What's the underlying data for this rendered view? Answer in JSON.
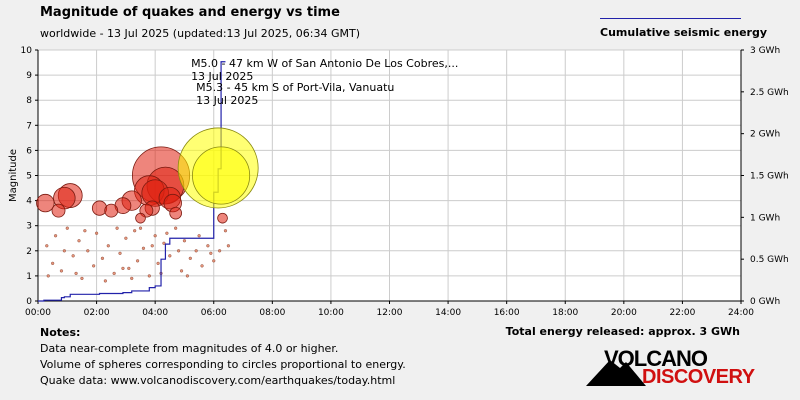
{
  "header": {
    "title": "Magnitude of quakes and energy vs time",
    "subtitle": "worldwide - 13 Jul 2025 (updated:13 Jul 2025, 06:34 GMT)",
    "legend_label": "Cumulative seismic energy"
  },
  "notes": {
    "heading": "Notes:",
    "line1": "Data near-complete from magnitudes of 4.0 or higher.",
    "line2": "Volume of spheres corresponding to circles proportional to energy.",
    "line3": "Quake data: www.volcanodiscovery.com/earthquakes/today.html"
  },
  "total_energy": "Total energy released: approx. 3 GWh",
  "logo": {
    "line1": "VOLCANO",
    "line2": "DISCOVERY"
  },
  "colors": {
    "energy_line": "#2222aa",
    "quake_red": "#e02010",
    "quake_yellow": "#ffff00",
    "grid": "#cccccc"
  },
  "chart_data": {
    "type": "scatter",
    "ylabel": "Magnitude",
    "ylim": [
      0,
      10
    ],
    "y_ticks": [
      "0",
      "1",
      "2",
      "3",
      "4",
      "5",
      "6",
      "7",
      "8",
      "9",
      "10"
    ],
    "x_ticks": [
      "00:00",
      "02:00",
      "04:00",
      "06:00",
      "08:00",
      "10:00",
      "12:00",
      "14:00",
      "16:00",
      "18:00",
      "20:00",
      "22:00",
      "24:00"
    ],
    "xlim_hours": [
      0,
      24
    ],
    "y2_label": "Cumulative seismic energy",
    "y2lim_gwh": [
      0,
      3
    ],
    "y2_ticks": [
      "0 GWh",
      "0.5 GWh",
      "1 GWh",
      "1.5 GWh",
      "2 GWh",
      "2.5 GWh",
      "3 GWh"
    ],
    "grid": true,
    "annotations": [
      {
        "text": "M5.0 - 47 km W of San Antonio De Los Cobres,...",
        "date": "13 Jul 2025",
        "time_h": 6.25,
        "mag": 5.0
      },
      {
        "text": "M5.3 - 45 km S of Port-Vila, Vanuatu",
        "date": "13 Jul 2025",
        "time_h": 6.15,
        "mag": 5.3
      }
    ],
    "quakes_large": [
      {
        "t": 0.25,
        "m": 3.9
      },
      {
        "t": 0.7,
        "m": 3.6
      },
      {
        "t": 0.9,
        "m": 4.1
      },
      {
        "t": 1.1,
        "m": 4.2
      },
      {
        "t": 2.1,
        "m": 3.7
      },
      {
        "t": 2.5,
        "m": 3.6
      },
      {
        "t": 2.9,
        "m": 3.8
      },
      {
        "t": 3.2,
        "m": 4.0
      },
      {
        "t": 3.5,
        "m": 3.3
      },
      {
        "t": 3.7,
        "m": 3.6
      },
      {
        "t": 3.8,
        "m": 4.4
      },
      {
        "t": 3.9,
        "m": 3.7
      },
      {
        "t": 4.0,
        "m": 4.3
      },
      {
        "t": 4.2,
        "m": 5.0
      },
      {
        "t": 4.35,
        "m": 4.6
      },
      {
        "t": 4.5,
        "m": 4.1
      },
      {
        "t": 4.6,
        "m": 3.9
      },
      {
        "t": 4.7,
        "m": 3.5
      },
      {
        "t": 6.3,
        "m": 3.3
      }
    ],
    "quakes_highlight": [
      {
        "t": 6.15,
        "m": 5.3,
        "label": "M5.3"
      },
      {
        "t": 6.25,
        "m": 5.0,
        "label": "M5.0"
      }
    ],
    "quakes_small": [
      {
        "t": 0.3,
        "m": 2.2
      },
      {
        "t": 0.5,
        "m": 1.5
      },
      {
        "t": 0.6,
        "m": 2.6
      },
      {
        "t": 0.8,
        "m": 1.2
      },
      {
        "t": 1.0,
        "m": 2.9
      },
      {
        "t": 1.2,
        "m": 1.8
      },
      {
        "t": 1.4,
        "m": 2.4
      },
      {
        "t": 1.5,
        "m": 0.9
      },
      {
        "t": 1.7,
        "m": 2.0
      },
      {
        "t": 1.9,
        "m": 1.4
      },
      {
        "t": 2.0,
        "m": 2.7
      },
      {
        "t": 2.2,
        "m": 1.7
      },
      {
        "t": 2.4,
        "m": 2.2
      },
      {
        "t": 2.6,
        "m": 1.1
      },
      {
        "t": 2.7,
        "m": 2.9
      },
      {
        "t": 2.8,
        "m": 1.9
      },
      {
        "t": 3.0,
        "m": 2.5
      },
      {
        "t": 3.1,
        "m": 1.3
      },
      {
        "t": 3.3,
        "m": 2.8
      },
      {
        "t": 3.4,
        "m": 1.6
      },
      {
        "t": 3.6,
        "m": 2.1
      },
      {
        "t": 3.8,
        "m": 1.0
      },
      {
        "t": 4.0,
        "m": 2.6
      },
      {
        "t": 4.1,
        "m": 1.5
      },
      {
        "t": 4.3,
        "m": 2.3
      },
      {
        "t": 4.5,
        "m": 1.8
      },
      {
        "t": 4.7,
        "m": 2.9
      },
      {
        "t": 4.9,
        "m": 1.2
      },
      {
        "t": 5.0,
        "m": 2.4
      },
      {
        "t": 5.2,
        "m": 1.7
      },
      {
        "t": 5.4,
        "m": 2.0
      },
      {
        "t": 5.6,
        "m": 1.4
      },
      {
        "t": 5.8,
        "m": 2.2
      },
      {
        "t": 6.0,
        "m": 1.6
      },
      {
        "t": 6.4,
        "m": 2.8
      },
      {
        "t": 6.5,
        "m": 2.2
      },
      {
        "t": 0.35,
        "m": 1.0
      },
      {
        "t": 0.9,
        "m": 2.0
      },
      {
        "t": 1.3,
        "m": 1.1
      },
      {
        "t": 1.6,
        "m": 2.8
      },
      {
        "t": 2.3,
        "m": 0.8
      },
      {
        "t": 2.9,
        "m": 1.3
      },
      {
        "t": 3.2,
        "m": 0.9
      },
      {
        "t": 3.5,
        "m": 2.9
      },
      {
        "t": 3.9,
        "m": 2.2
      },
      {
        "t": 4.2,
        "m": 1.1
      },
      {
        "t": 4.4,
        "m": 2.7
      },
      {
        "t": 4.8,
        "m": 2.0
      },
      {
        "t": 5.1,
        "m": 1.0
      },
      {
        "t": 5.5,
        "m": 2.6
      },
      {
        "t": 5.9,
        "m": 1.9
      },
      {
        "t": 6.2,
        "m": 2.0
      }
    ],
    "energy_steps": [
      {
        "t": 0.0,
        "gwh": 0.0
      },
      {
        "t": 0.2,
        "gwh": 0.01
      },
      {
        "t": 0.8,
        "gwh": 0.04
      },
      {
        "t": 0.9,
        "gwh": 0.05
      },
      {
        "t": 1.1,
        "gwh": 0.08
      },
      {
        "t": 2.1,
        "gwh": 0.09
      },
      {
        "t": 2.9,
        "gwh": 0.1
      },
      {
        "t": 3.2,
        "gwh": 0.12
      },
      {
        "t": 3.8,
        "gwh": 0.16
      },
      {
        "t": 4.0,
        "gwh": 0.18
      },
      {
        "t": 4.2,
        "gwh": 0.5
      },
      {
        "t": 4.35,
        "gwh": 0.68
      },
      {
        "t": 4.5,
        "gwh": 0.75
      },
      {
        "t": 6.0,
        "gwh": 1.3
      },
      {
        "t": 6.15,
        "gwh": 1.58
      },
      {
        "t": 6.25,
        "gwh": 2.86
      },
      {
        "t": 6.4,
        "gwh": 2.86
      }
    ]
  }
}
